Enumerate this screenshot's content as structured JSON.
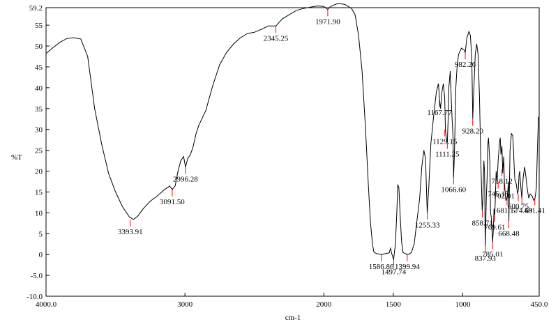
{
  "chart_data": {
    "type": "line",
    "title": "",
    "xlabel": "cm-1",
    "ylabel": "%T",
    "xlim": [
      4000.0,
      450.0
    ],
    "ylim": [
      -10.0,
      59.2
    ],
    "x_reversed": true,
    "grid": false,
    "legend": "none",
    "line_color": "#000000",
    "peak_marker_color": "#ff0000",
    "x_ticks": [
      {
        "value": 4000,
        "label": "4000.0"
      },
      {
        "value": 3000,
        "label": "3000"
      },
      {
        "value": 2000,
        "label": "2000"
      },
      {
        "value": 1500,
        "label": "1500"
      },
      {
        "value": 1000,
        "label": "1000"
      },
      {
        "value": 450,
        "label": "450.0"
      }
    ],
    "y_ticks": [
      {
        "value": 59.2,
        "label": "59.2"
      },
      {
        "value": 55,
        "label": "55"
      },
      {
        "value": 50,
        "label": "50"
      },
      {
        "value": 45,
        "label": "45"
      },
      {
        "value": 40,
        "label": "40"
      },
      {
        "value": 35,
        "label": "35"
      },
      {
        "value": 30,
        "label": "30"
      },
      {
        "value": 25,
        "label": "25"
      },
      {
        "value": 20,
        "label": "20"
      },
      {
        "value": 15,
        "label": "15"
      },
      {
        "value": 10,
        "label": "10"
      },
      {
        "value": 5,
        "label": "5"
      },
      {
        "value": 0,
        "label": "0"
      },
      {
        "value": -5,
        "label": "-5.0"
      },
      {
        "value": -10,
        "label": "-10.0"
      }
    ],
    "series": [
      {
        "points": [
          [
            4000,
            48.2
          ],
          [
            3950,
            49.6
          ],
          [
            3900,
            50.9
          ],
          [
            3850,
            51.8
          ],
          [
            3800,
            52.0
          ],
          [
            3750,
            51.7
          ],
          [
            3700,
            47.5
          ],
          [
            3650,
            35.0
          ],
          [
            3600,
            26.5
          ],
          [
            3550,
            19.5
          ],
          [
            3500,
            15.0
          ],
          [
            3450,
            11.5
          ],
          [
            3400,
            9.0
          ],
          [
            3370,
            8.4
          ],
          [
            3340,
            9.2
          ],
          [
            3300,
            11.0
          ],
          [
            3250,
            12.8
          ],
          [
            3200,
            14.0
          ],
          [
            3150,
            15.5
          ],
          [
            3110,
            16.4
          ],
          [
            3091,
            15.6
          ],
          [
            3070,
            16.5
          ],
          [
            3050,
            20.0
          ],
          [
            3030,
            22.5
          ],
          [
            3010,
            23.5
          ],
          [
            2996,
            21.0
          ],
          [
            2980,
            23.0
          ],
          [
            2960,
            24.0
          ],
          [
            2940,
            26.0
          ],
          [
            2920,
            29.0
          ],
          [
            2900,
            31.0
          ],
          [
            2850,
            34.5
          ],
          [
            2800,
            40.5
          ],
          [
            2750,
            45.5
          ],
          [
            2700,
            48.5
          ],
          [
            2650,
            50.5
          ],
          [
            2600,
            52.0
          ],
          [
            2550,
            53.0
          ],
          [
            2500,
            53.3
          ],
          [
            2450,
            54.0
          ],
          [
            2400,
            54.8
          ],
          [
            2345,
            54.8
          ],
          [
            2300,
            56.5
          ],
          [
            2250,
            57.5
          ],
          [
            2200,
            58.5
          ],
          [
            2150,
            59.0
          ],
          [
            2100,
            59.3
          ],
          [
            2050,
            59.6
          ],
          [
            2000,
            59.5
          ],
          [
            1972,
            58.8
          ],
          [
            1950,
            59.5
          ],
          [
            1900,
            60.2
          ],
          [
            1850,
            60.0
          ],
          [
            1800,
            59.0
          ],
          [
            1775,
            57.5
          ],
          [
            1750,
            52.5
          ],
          [
            1725,
            44.0
          ],
          [
            1700,
            30.0
          ],
          [
            1680,
            17.0
          ],
          [
            1665,
            8.0
          ],
          [
            1650,
            2.5
          ],
          [
            1640,
            0.6
          ],
          [
            1620,
            0.2
          ],
          [
            1600,
            0.1
          ],
          [
            1587,
            0.0
          ],
          [
            1560,
            0.2
          ],
          [
            1530,
            0.4
          ],
          [
            1520,
            1.5
          ],
          [
            1512,
            0.3
          ],
          [
            1498,
            -1.2
          ],
          [
            1485,
            2.5
          ],
          [
            1475,
            10.0
          ],
          [
            1468,
            16.8
          ],
          [
            1460,
            16.0
          ],
          [
            1450,
            9.0
          ],
          [
            1440,
            3.0
          ],
          [
            1430,
            0.5
          ],
          [
            1400,
            0.0
          ],
          [
            1390,
            0.0
          ],
          [
            1370,
            0.5
          ],
          [
            1350,
            2.5
          ],
          [
            1330,
            8.0
          ],
          [
            1310,
            13.5
          ],
          [
            1295,
            21.0
          ],
          [
            1280,
            25.0
          ],
          [
            1268,
            23.0
          ],
          [
            1256,
            10.0
          ],
          [
            1245,
            16.0
          ],
          [
            1230,
            26.5
          ],
          [
            1210,
            33.0
          ],
          [
            1190,
            39.0
          ],
          [
            1175,
            41.0
          ],
          [
            1167,
            37.0
          ],
          [
            1160,
            35.0
          ],
          [
            1150,
            39.0
          ],
          [
            1140,
            41.0
          ],
          [
            1130,
            37.5
          ],
          [
            1125,
            30.0
          ],
          [
            1115,
            27.0
          ],
          [
            1111,
            27.0
          ],
          [
            1105,
            33.0
          ],
          [
            1100,
            40.0
          ],
          [
            1090,
            44.0
          ],
          [
            1080,
            35.0
          ],
          [
            1070,
            28.0
          ],
          [
            1066,
            18.5
          ],
          [
            1060,
            24.0
          ],
          [
            1050,
            40.0
          ],
          [
            1040,
            45.5
          ],
          [
            1030,
            48.0
          ],
          [
            1010,
            49.5
          ],
          [
            990,
            49.0
          ],
          [
            982,
            48.5
          ],
          [
            970,
            52.0
          ],
          [
            955,
            53.5
          ],
          [
            945,
            52.5
          ],
          [
            935,
            47.0
          ],
          [
            928,
            32.5
          ],
          [
            920,
            40.0
          ],
          [
            910,
            48.0
          ],
          [
            900,
            50.5
          ],
          [
            890,
            48.0
          ],
          [
            880,
            38.0
          ],
          [
            870,
            22.0
          ],
          [
            860,
            10.5
          ],
          [
            855,
            13.0
          ],
          [
            848,
            22.5
          ],
          [
            843,
            20.0
          ],
          [
            838,
            2.0
          ],
          [
            830,
            14.0
          ],
          [
            825,
            18.0
          ],
          [
            820,
            26.0
          ],
          [
            815,
            28.0
          ],
          [
            805,
            22.0
          ],
          [
            800,
            10.0
          ],
          [
            795,
            9.0
          ],
          [
            785,
            3.0
          ],
          [
            780,
            6.0
          ],
          [
            775,
            11.0
          ],
          [
            770,
            9.5
          ],
          [
            765,
            14.0
          ],
          [
            760,
            20.0
          ],
          [
            753,
            17.5
          ],
          [
            745,
            22.5
          ],
          [
            735,
            27.0
          ],
          [
            730,
            28.0
          ],
          [
            725,
            24.0
          ],
          [
            718,
            26.0
          ],
          [
            712,
            19.5
          ],
          [
            705,
            23.5
          ],
          [
            700,
            17.0
          ],
          [
            690,
            13.0
          ],
          [
            681,
            13.5
          ],
          [
            670,
            17.5
          ],
          [
            668,
            8.0
          ],
          [
            660,
            25.0
          ],
          [
            650,
            29.0
          ],
          [
            640,
            28.5
          ],
          [
            635,
            25.0
          ],
          [
            630,
            21.0
          ],
          [
            625,
            18.0
          ],
          [
            615,
            17.0
          ],
          [
            605,
            14.5
          ],
          [
            600,
            15.5
          ],
          [
            595,
            19.0
          ],
          [
            590,
            20.0
          ],
          [
            585,
            17.5
          ],
          [
            575,
            13.5
          ],
          [
            565,
            18.5
          ],
          [
            555,
            21.0
          ],
          [
            545,
            18.5
          ],
          [
            535,
            15.5
          ],
          [
            525,
            13.5
          ],
          [
            515,
            14.5
          ],
          [
            500,
            14.0
          ],
          [
            490,
            13.0
          ],
          [
            480,
            13.5
          ],
          [
            470,
            16.0
          ],
          [
            462,
            26.0
          ],
          [
            455,
            33.0
          ]
        ]
      }
    ],
    "peak_labels": [
      {
        "x": 3393.91,
        "y": 8.4,
        "label": "3393.91"
      },
      {
        "x": 3091.5,
        "y": 15.6,
        "label": "3091.50"
      },
      {
        "x": 2996.28,
        "y": 21.0,
        "label": "2996.28"
      },
      {
        "x": 2345.25,
        "y": 54.8,
        "label": "2345.25"
      },
      {
        "x": 1971.9,
        "y": 58.8,
        "label": "1971.90"
      },
      {
        "x": 1586.86,
        "y": 0.0,
        "label": "1586.86"
      },
      {
        "x": 1497.74,
        "y": -1.2,
        "label": "1497.74"
      },
      {
        "x": 1399.94,
        "y": 0.0,
        "label": "1399.94"
      },
      {
        "x": 1255.33,
        "y": 10.0,
        "label": "1255.33"
      },
      {
        "x": 1167.77,
        "y": 37.0,
        "label": "1167.77"
      },
      {
        "x": 1129.15,
        "y": 30.0,
        "label": "1129.15"
      },
      {
        "x": 1111.25,
        "y": 27.0,
        "label": "1111.25"
      },
      {
        "x": 1066.6,
        "y": 18.5,
        "label": "1066.60"
      },
      {
        "x": 982.26,
        "y": 48.5,
        "label": "982.26"
      },
      {
        "x": 928.2,
        "y": 32.5,
        "label": "928.20"
      },
      {
        "x": 858.71,
        "y": 10.5,
        "label": "858.71"
      },
      {
        "x": 837.93,
        "y": 2.0,
        "label": "837.93"
      },
      {
        "x": 785.01,
        "y": 3.0,
        "label": "785.01"
      },
      {
        "x": 769.61,
        "y": 9.5,
        "label": "769.61"
      },
      {
        "x": 745.15,
        "y": 17.5,
        "label": "745.15"
      },
      {
        "x": 718.12,
        "y": 20.5,
        "label": "718.12"
      },
      {
        "x": 702.01,
        "y": 17.0,
        "label": "702.01"
      },
      {
        "x": 681.17,
        "y": 13.5,
        "label": "681.17"
      },
      {
        "x": 668.48,
        "y": 8.0,
        "label": "668.48"
      },
      {
        "x": 600.75,
        "y": 14.5,
        "label": "600.75"
      },
      {
        "x": 574.69,
        "y": 13.5,
        "label": "574.69"
      },
      {
        "x": 481.41,
        "y": 13.5,
        "label": "481.41"
      }
    ]
  }
}
